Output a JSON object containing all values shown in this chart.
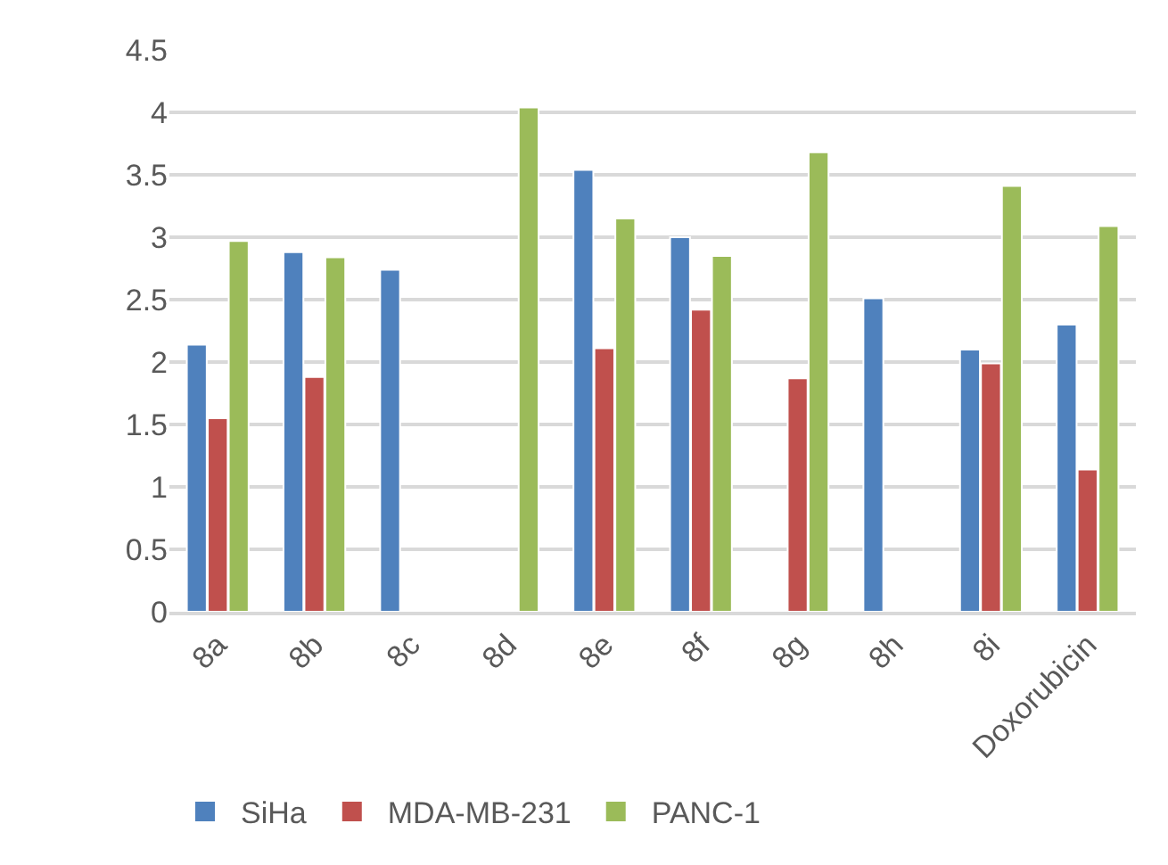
{
  "chart_data": {
    "type": "bar",
    "categories": [
      "8a",
      "8b",
      "8c",
      "8d",
      "8e",
      "8f",
      "8g",
      "8h",
      "8i",
      "Doxorubicin"
    ],
    "series": [
      {
        "name": "SiHa",
        "color": "#4f81bd",
        "values": [
          2.14,
          2.88,
          2.74,
          null,
          3.54,
          3.0,
          null,
          2.51,
          2.1,
          2.3
        ]
      },
      {
        "name": "MDA-MB-231",
        "color": "#c0504d",
        "values": [
          1.55,
          1.88,
          null,
          null,
          2.11,
          2.42,
          1.87,
          null,
          1.99,
          1.14
        ]
      },
      {
        "name": "PANC-1",
        "color": "#9bbb59",
        "values": [
          2.97,
          2.84,
          null,
          4.04,
          3.15,
          2.85,
          3.68,
          null,
          3.41,
          3.09
        ]
      }
    ],
    "ylim": [
      0,
      4.5
    ],
    "yticks": [
      0,
      0.5,
      1,
      1.5,
      2,
      2.5,
      3,
      3.5,
      4,
      4.5
    ],
    "grid": "y",
    "legend": "bottom left"
  }
}
